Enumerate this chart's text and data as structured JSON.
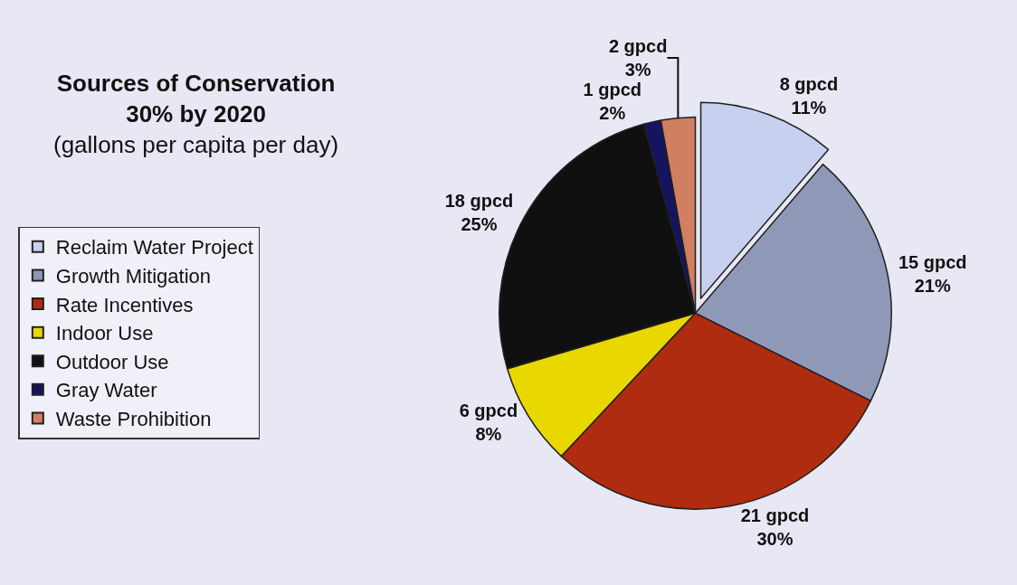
{
  "chart_data": {
    "type": "pie",
    "title": "Sources of Conservation\n30% by 2020",
    "subtitle": "(gallons per capita per day)",
    "categories": [
      "Reclaim Water Project",
      "Growth Mitigation",
      "Rate Incentives",
      "Indoor Use",
      "Outdoor Use",
      "Gray Water",
      "Waste Prohibition"
    ],
    "values": [
      8,
      15,
      21,
      6,
      18,
      1,
      2
    ],
    "colors": [
      "#c8d0f0",
      "#9098b8",
      "#b02c10",
      "#e8d800",
      "#101010",
      "#141460",
      "#d08060"
    ],
    "value_labels": [
      "8 gpcd\n11%",
      "15 gpcd\n21%",
      "21 gpcd\n30%",
      "6 gpcd\n8%",
      "18 gpcd\n25%",
      "1 gpcd\n2%",
      "2 gpcd\n3%"
    ],
    "legend": "left"
  }
}
